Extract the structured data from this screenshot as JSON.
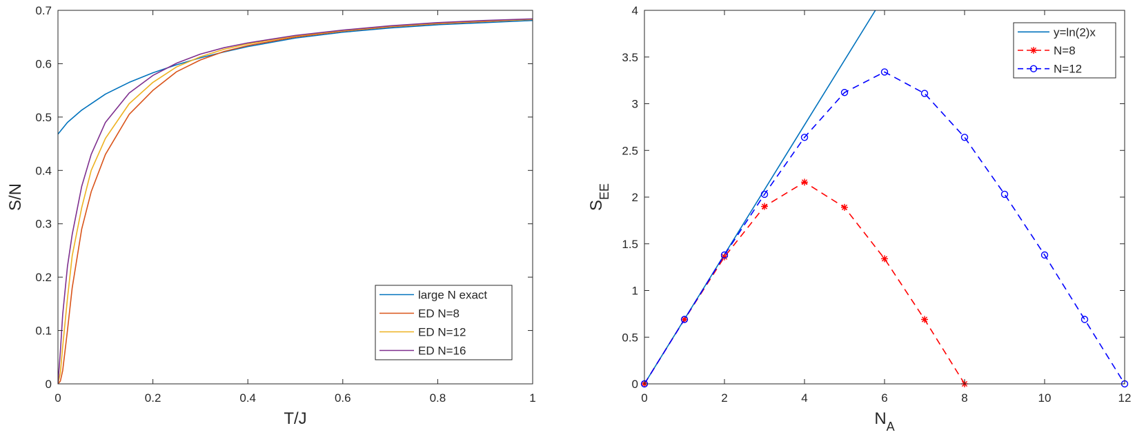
{
  "chart_data": [
    {
      "type": "line",
      "title": "",
      "xlabel": "T/J",
      "ylabel": "S/N",
      "xlim": [
        0,
        1
      ],
      "ylim": [
        0,
        0.7
      ],
      "xticks": [
        0,
        0.2,
        0.4,
        0.6,
        0.8,
        1
      ],
      "xtick_labels": [
        "0",
        "0.2",
        "0.4",
        "0.6",
        "0.8",
        "1"
      ],
      "yticks": [
        0,
        0.1,
        0.2,
        0.3,
        0.4,
        0.5,
        0.6,
        0.7
      ],
      "ytick_labels": [
        "0",
        "0.1",
        "0.2",
        "0.3",
        "0.4",
        "0.5",
        "0.6",
        "0.7"
      ],
      "legend_position": "bottom-right",
      "series": [
        {
          "name": "large N exact",
          "color": "#0072BD",
          "x": [
            0,
            0.02,
            0.05,
            0.1,
            0.15,
            0.2,
            0.25,
            0.3,
            0.35,
            0.4,
            0.5,
            0.6,
            0.7,
            0.8,
            0.9,
            1.0
          ],
          "y": [
            0.468,
            0.49,
            0.513,
            0.543,
            0.565,
            0.583,
            0.598,
            0.611,
            0.622,
            0.632,
            0.648,
            0.659,
            0.667,
            0.673,
            0.677,
            0.681
          ]
        },
        {
          "name": "ED N=8",
          "color": "#D95319",
          "x": [
            0,
            0.005,
            0.01,
            0.02,
            0.03,
            0.05,
            0.07,
            0.1,
            0.15,
            0.2,
            0.25,
            0.3,
            0.35,
            0.4,
            0.5,
            0.6,
            0.7,
            0.8,
            0.9,
            1.0
          ],
          "y": [
            0,
            0.005,
            0.025,
            0.1,
            0.18,
            0.29,
            0.36,
            0.43,
            0.505,
            0.55,
            0.585,
            0.607,
            0.623,
            0.634,
            0.65,
            0.661,
            0.669,
            0.675,
            0.679,
            0.683
          ]
        },
        {
          "name": "ED N=12",
          "color": "#EDB120",
          "x": [
            0,
            0.005,
            0.01,
            0.02,
            0.03,
            0.05,
            0.07,
            0.1,
            0.15,
            0.2,
            0.25,
            0.3,
            0.35,
            0.4,
            0.5,
            0.6,
            0.7,
            0.8,
            0.9,
            1.0
          ],
          "y": [
            0,
            0.02,
            0.07,
            0.16,
            0.24,
            0.33,
            0.4,
            0.46,
            0.525,
            0.565,
            0.594,
            0.613,
            0.627,
            0.637,
            0.652,
            0.662,
            0.67,
            0.676,
            0.68,
            0.683
          ]
        },
        {
          "name": "ED N=16",
          "color": "#7E2F8E",
          "x": [
            0,
            0.005,
            0.01,
            0.02,
            0.03,
            0.05,
            0.07,
            0.1,
            0.15,
            0.2,
            0.25,
            0.3,
            0.35,
            0.4,
            0.5,
            0.6,
            0.7,
            0.8,
            0.9,
            1.0
          ],
          "y": [
            0,
            0.06,
            0.13,
            0.22,
            0.28,
            0.37,
            0.43,
            0.49,
            0.545,
            0.578,
            0.601,
            0.618,
            0.63,
            0.639,
            0.653,
            0.663,
            0.671,
            0.677,
            0.681,
            0.684
          ]
        }
      ]
    },
    {
      "type": "line",
      "title": "",
      "xlabel": "N",
      "xlabel_sub": "A",
      "ylabel": "S",
      "ylabel_sub": "EE",
      "xlim": [
        0,
        12
      ],
      "ylim": [
        0,
        4
      ],
      "xticks": [
        0,
        2,
        4,
        6,
        8,
        10,
        12
      ],
      "xtick_labels": [
        "0",
        "2",
        "4",
        "6",
        "8",
        "10",
        "12"
      ],
      "yticks": [
        0,
        0.5,
        1,
        1.5,
        2,
        2.5,
        3,
        3.5,
        4
      ],
      "ytick_labels": [
        "0",
        "0.5",
        "1",
        "1.5",
        "2",
        "2.5",
        "3",
        "3.5",
        "4"
      ],
      "legend_position": "top-right",
      "series": [
        {
          "name": "y=ln(2)x",
          "color": "#0072BD",
          "style": "solid",
          "marker": "none",
          "x": [
            0,
            5.771
          ],
          "y": [
            0,
            4.0
          ]
        },
        {
          "name": "N=8",
          "color": "#FF0000",
          "style": "dashed",
          "marker": "asterisk",
          "x": [
            0,
            1,
            2,
            3,
            4,
            5,
            6,
            7,
            8
          ],
          "y": [
            0,
            0.69,
            1.36,
            1.9,
            2.16,
            1.89,
            1.34,
            0.69,
            0
          ]
        },
        {
          "name": "N=12",
          "color": "#0000FF",
          "style": "dashed",
          "marker": "circle",
          "x": [
            0,
            1,
            2,
            3,
            4,
            5,
            6,
            7,
            8,
            9,
            10,
            11,
            12
          ],
          "y": [
            0,
            0.69,
            1.38,
            2.03,
            2.64,
            3.12,
            3.34,
            3.11,
            2.64,
            2.03,
            1.38,
            0.69,
            0
          ]
        }
      ]
    }
  ]
}
